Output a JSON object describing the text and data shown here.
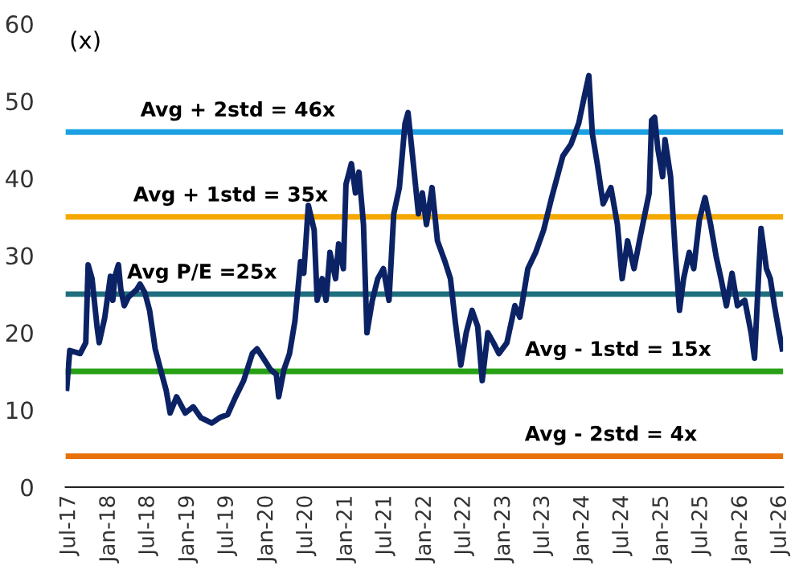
{
  "chart_data": {
    "type": "line",
    "ylabel": "(x)",
    "x": [
      "2017-06-20",
      "2017-07-04",
      "2017-08-21",
      "2017-09-16",
      "2017-09-27",
      "2017-10-15",
      "2017-11-07",
      "2017-11-17",
      "2017-12-13",
      "2018-01-08",
      "2018-01-19",
      "2018-01-29",
      "2018-02-14",
      "2018-02-25",
      "2018-03-13",
      "2018-04-01",
      "2018-05-10",
      "2018-05-25",
      "2018-06-16",
      "2018-07-08",
      "2018-08-03",
      "2018-08-28",
      "2018-09-23",
      "2018-10-11",
      "2018-11-10",
      "2018-12-20",
      "2019-01-26",
      "2019-03-02",
      "2019-04-22",
      "2019-05-28",
      "2019-07-04",
      "2019-08-10",
      "2019-09-16",
      "2019-10-26",
      "2019-11-17",
      "2019-12-16",
      "2020-01-19",
      "2020-02-14",
      "2020-02-25",
      "2020-03-20",
      "2020-04-15",
      "2020-05-10",
      "2020-06-05",
      "2020-06-20",
      "2020-07-11",
      "2020-08-07",
      "2020-08-21",
      "2020-09-13",
      "2020-10-01",
      "2020-10-19",
      "2020-11-14",
      "2020-11-28",
      "2020-12-20",
      "2021-01-01",
      "2021-01-26",
      "2021-02-14",
      "2021-03-02",
      "2021-03-23",
      "2021-04-08",
      "2021-05-03",
      "2021-05-28",
      "2021-06-23",
      "2021-07-19",
      "2021-08-10",
      "2021-09-05",
      "2021-10-01",
      "2021-10-15",
      "2021-11-07",
      "2021-12-02",
      "2021-12-20",
      "2022-01-08",
      "2022-02-03",
      "2022-02-28",
      "2022-04-04",
      "2022-04-29",
      "2022-05-21",
      "2022-06-16",
      "2022-07-11",
      "2022-08-07",
      "2022-09-02",
      "2022-09-23",
      "2022-10-19",
      "2022-11-14",
      "2022-12-09",
      "2023-01-15",
      "2023-02-21",
      "2023-03-16",
      "2023-04-22",
      "2023-05-28",
      "2023-07-04",
      "2023-08-10",
      "2023-10-01",
      "2023-11-07",
      "2023-12-13",
      "2024-01-08",
      "2024-01-29",
      "2024-02-14",
      "2024-03-09",
      "2024-04-04",
      "2024-05-10",
      "2024-06-09",
      "2024-07-01",
      "2024-07-26",
      "2024-08-25",
      "2024-09-23",
      "2024-11-03",
      "2024-11-14",
      "2024-11-28",
      "2024-12-13",
      "2025-01-04",
      "2025-01-15",
      "2025-02-10",
      "2025-03-05",
      "2025-03-23",
      "2025-04-11",
      "2025-05-07",
      "2025-05-28",
      "2025-06-23",
      "2025-07-19",
      "2025-08-14",
      "2025-09-09",
      "2025-10-01",
      "2025-10-26",
      "2025-11-21",
      "2025-12-16",
      "2026-01-19",
      "2026-02-17",
      "2026-03-05",
      "2026-03-23",
      "2026-04-04",
      "2026-04-29",
      "2026-05-17",
      "2026-06-05",
      "2026-06-27",
      "2026-07-11"
    ],
    "series": [
      {
        "color": "#0b2265",
        "values": [
          12.8,
          17.7,
          17.3,
          18.7,
          28.8,
          27,
          20.8,
          18.7,
          22,
          27.3,
          24.2,
          27.3,
          28.8,
          25.6,
          23.5,
          24.6,
          25.6,
          26.3,
          25.2,
          22.9,
          17.9,
          15.2,
          12.5,
          9.6,
          11.7,
          9.6,
          10.4,
          9,
          8.3,
          9,
          9.4,
          11.7,
          13.8,
          17.3,
          17.9,
          16.7,
          15.2,
          14.6,
          11.7,
          15.2,
          17.3,
          21.5,
          29.2,
          27.7,
          36.5,
          33.3,
          24.2,
          27,
          24.2,
          30.4,
          27,
          31.5,
          28.3,
          39.2,
          41.9,
          38.1,
          40.8,
          34,
          20,
          24.2,
          27,
          28.3,
          24.2,
          35.4,
          38.8,
          47.1,
          48.5,
          42.3,
          35.4,
          38.1,
          34,
          38.8,
          31.9,
          29.2,
          27,
          21.5,
          15.8,
          20,
          22.9,
          20.8,
          13.8,
          20,
          18.7,
          17.3,
          18.7,
          23.5,
          22,
          28.3,
          30.4,
          33.3,
          37.5,
          42.9,
          44.4,
          47.1,
          50.6,
          53.3,
          45.8,
          41.7,
          36.7,
          38.8,
          34,
          27,
          31.9,
          28.3,
          32.5,
          38.1,
          47.5,
          47.9,
          43.8,
          40.2,
          45,
          40.2,
          29.8,
          22.9,
          27,
          30.4,
          28.3,
          34.6,
          37.5,
          34,
          29.8,
          27,
          23.5,
          27.7,
          23.5,
          24.2,
          20,
          16.7,
          27,
          33.5,
          28.3,
          27,
          23.5,
          20,
          17.9
        ]
      }
    ],
    "xlim": [
      "2017-06-15",
      "2026-07-15"
    ],
    "xticks": [
      {
        "value": "2017-07",
        "label": "Jul-17"
      },
      {
        "value": "2018-01",
        "label": "Jan-18"
      },
      {
        "value": "2018-07",
        "label": "Jul-18"
      },
      {
        "value": "2019-01",
        "label": "Jan-19"
      },
      {
        "value": "2019-07",
        "label": "Jul-19"
      },
      {
        "value": "2020-01",
        "label": "Jan-20"
      },
      {
        "value": "2020-07",
        "label": "Jul-20"
      },
      {
        "value": "2021-01",
        "label": "Jan-21"
      },
      {
        "value": "2021-07",
        "label": "Jul-21"
      },
      {
        "value": "2022-01",
        "label": "Jan-22"
      },
      {
        "value": "2022-07",
        "label": "Jul-22"
      },
      {
        "value": "2023-01",
        "label": "Jan-23"
      },
      {
        "value": "2023-07",
        "label": "Jul-23"
      },
      {
        "value": "2024-01",
        "label": "Jan-24"
      },
      {
        "value": "2024-07",
        "label": "Jul-24"
      },
      {
        "value": "2025-01",
        "label": "Jan-25"
      },
      {
        "value": "2025-07",
        "label": "Jul-25"
      },
      {
        "value": "2026-01",
        "label": "Jan-26"
      },
      {
        "value": "2026-07",
        "label": "Jul-26"
      }
    ],
    "ylim": [
      0,
      60
    ],
    "yticks": [
      0,
      10,
      20,
      30,
      40,
      50,
      60
    ],
    "ref_lines": [
      {
        "axis": "y",
        "value": 46,
        "label": "Avg + 2std = 46x",
        "color": "#1ba1e2"
      },
      {
        "axis": "y",
        "value": 35,
        "label": "Avg + 1std = 35x",
        "color": "#f5a800"
      },
      {
        "axis": "y",
        "value": 25,
        "label": "Avg P/E =25x",
        "color": "#1f6e7e"
      },
      {
        "axis": "y",
        "value": 15,
        "label": "Avg - 1std = 15x",
        "color": "#27a016"
      },
      {
        "axis": "y",
        "value": 4,
        "label": "Avg - 2std = 4x",
        "color": "#e8710a"
      }
    ],
    "grid": false,
    "legend": false,
    "marker": "none",
    "line_style": "solid"
  }
}
